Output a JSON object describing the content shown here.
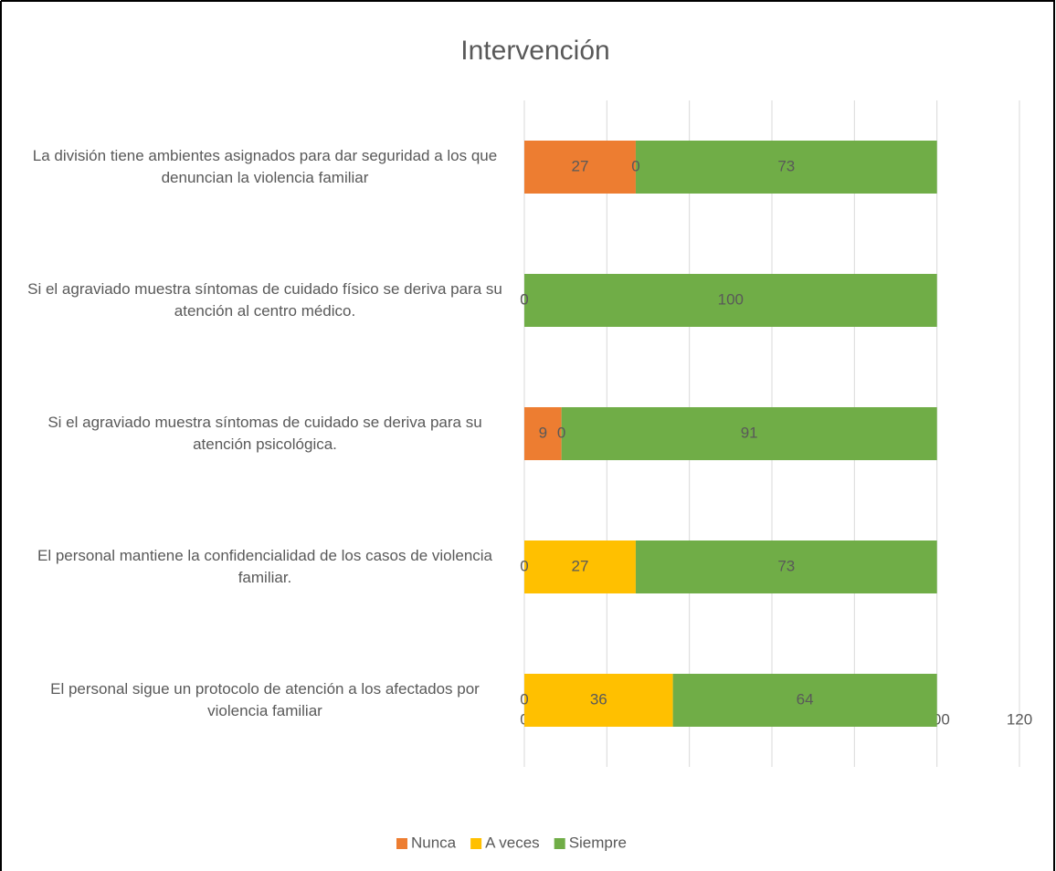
{
  "chart_data": {
    "type": "stacked_barh",
    "title": "Intervención",
    "categories": [
      "La división tiene ambientes asignados para dar seguridad a los que denuncian la violencia familiar",
      "Si el agraviado muestra síntomas de cuidado físico se deriva para su atención al centro médico.",
      "Si el agraviado muestra síntomas de cuidado se deriva para su atención psicológica.",
      "El personal mantiene la confidencialidad de los casos de violencia familiar.",
      "El personal sigue un protocolo de atención a los afectados por violencia familiar"
    ],
    "series": [
      {
        "name": "Nunca",
        "color": "#ED7D31",
        "values": [
          27,
          0,
          9,
          0,
          0
        ]
      },
      {
        "name": "A veces",
        "color": "#FFC000",
        "values": [
          0,
          0,
          0,
          27,
          36
        ]
      },
      {
        "name": "Siempre",
        "color": "#70AD47",
        "values": [
          73,
          100,
          91,
          73,
          64
        ]
      }
    ],
    "xlim": [
      0,
      120
    ],
    "xticks": [
      0,
      20,
      40,
      60,
      80,
      100,
      120
    ],
    "grid": true,
    "legend": "bottom"
  }
}
